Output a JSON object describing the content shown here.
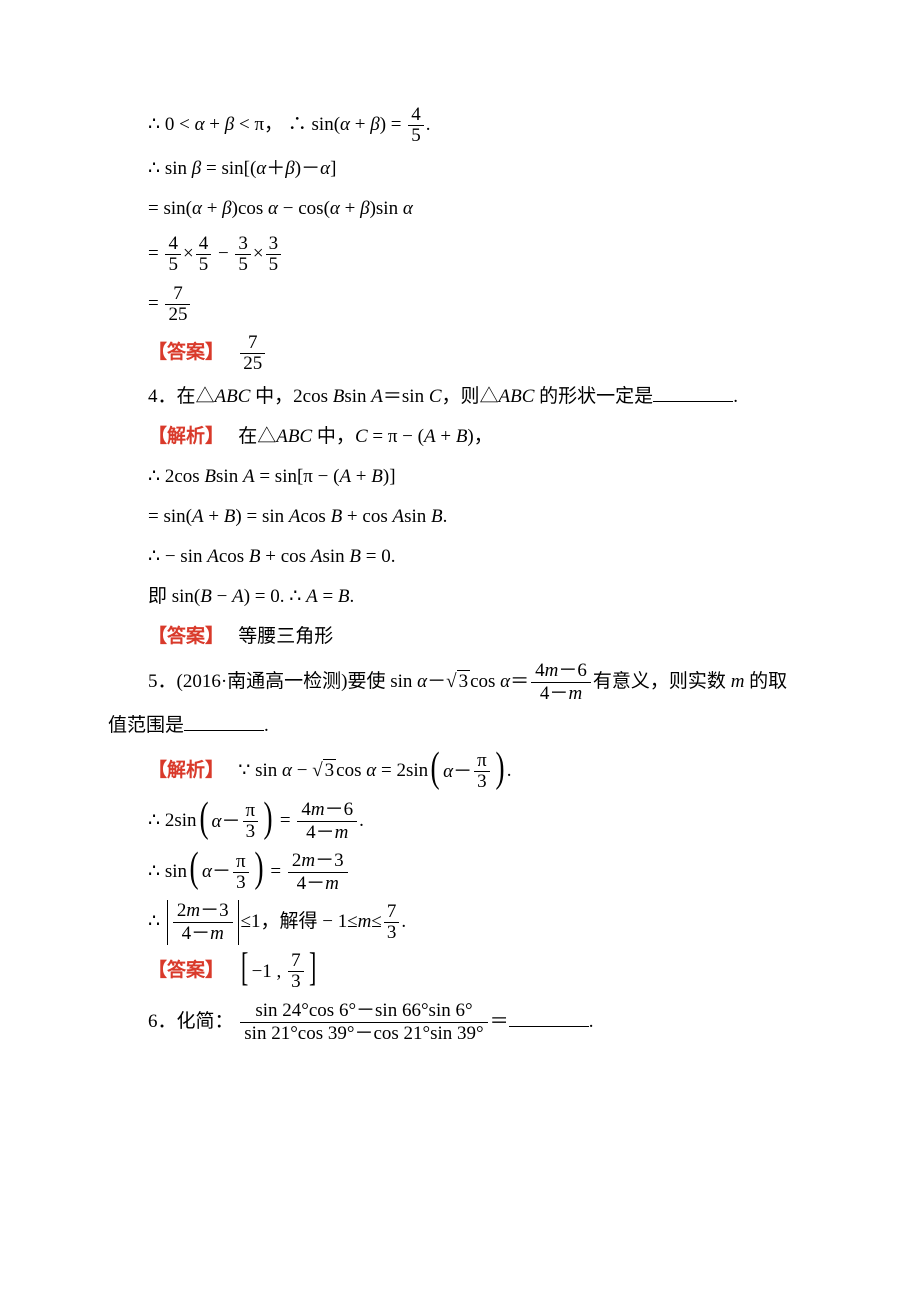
{
  "colors": {
    "text": "#000000",
    "accent": "#d93a2b",
    "background": "#ffffff"
  },
  "typography": {
    "body_fontsize_pt": 14,
    "math_font": "Times New Roman",
    "cjk_font": "SimSun"
  },
  "lines": {
    "l1a": "∴ 0 < ",
    "l1b": " < π，  ∴ sin(",
    "l1c": ") = ",
    "alpha": "α",
    "beta": "β",
    "plus": " + ",
    "four": "4",
    "five": "5",
    "period": ".",
    "l2a": "∴ sin ",
    "l2b": " = sin[(",
    "l2c": "＋",
    "l2d": ")－",
    "l2e": "]",
    "l3a": "= sin(",
    "l3b": ")cos ",
    "l3c": " − cos(",
    "l3d": ")sin ",
    "l4eq": "= ",
    "l4x": "×",
    "l4m": " − ",
    "three": "3",
    "seven": "7",
    "tw25": "25",
    "ans_label": "【答案】",
    "jx_label": "【解析】",
    "q4": "4．在△",
    "abc": "ABC",
    "q4b": " 中，2cos ",
    "B": "B",
    "A": "A",
    "C": "C",
    "q4sin": "sin ",
    "q4eq": "＝sin ",
    "q4then": "，则△",
    "q4shape": " 的形状一定是",
    "q4dot": ".",
    "j4a": "在△",
    "j4b": " 中，",
    "j4c": " = π − (",
    "j4d": ")，",
    "j4e": "∴ 2cos ",
    "j4f": " = sin[π − (",
    "j4g": ")]",
    "j4h": "= sin(",
    "j4i": ") = sin ",
    "j4j": "cos ",
    "j4k": " + cos ",
    "j4l": "sin ",
    "j4m": ".",
    "j4n": "∴ − sin ",
    "j4o": " + cos ",
    "j4p": " = 0.",
    "j4q": "即 sin(",
    "j4r": " − ",
    "j4s": ") = 0. ∴ ",
    "j4t": " = ",
    "ans4": "等腰三角形",
    "q5a": "5．(2016·南通高一检测)要使 sin ",
    "q5b": "－",
    "sqrt3": "3",
    "q5c": "cos ",
    "q5d": "＝",
    "q5num": "4m－6",
    "q5den": "4－m",
    "q5e": "有意义，则实数 ",
    "m": "m",
    "q5f": " 的取",
    "q5g": "值范围是",
    "j5a": "∵ sin ",
    "j5b": " − ",
    "j5c": "cos ",
    "j5d": " = 2sin",
    "j5e": "－",
    "pi": "π",
    "j5_3": "3",
    "j5f": "∴ 2sin",
    "j5g": " = ",
    "j5num2": "4m－6",
    "j5den2": "4－m",
    "j5h": "∴ sin",
    "j5num3": "2m－3",
    "j5den3": "4－m",
    "j5i": "∴ ",
    "j5le": "≤1，解得 − 1≤",
    "j5k": "≤",
    "j5_7": "7",
    "ans5a": "−1 ,",
    "q6a": "6．化简：",
    "q6num": "sin 24°cos 6°－sin 66°sin 6°",
    "q6den": "sin 21°cos 39°－cos 21°sin 39°",
    "q6eq": "＝",
    "q6dot": "."
  }
}
